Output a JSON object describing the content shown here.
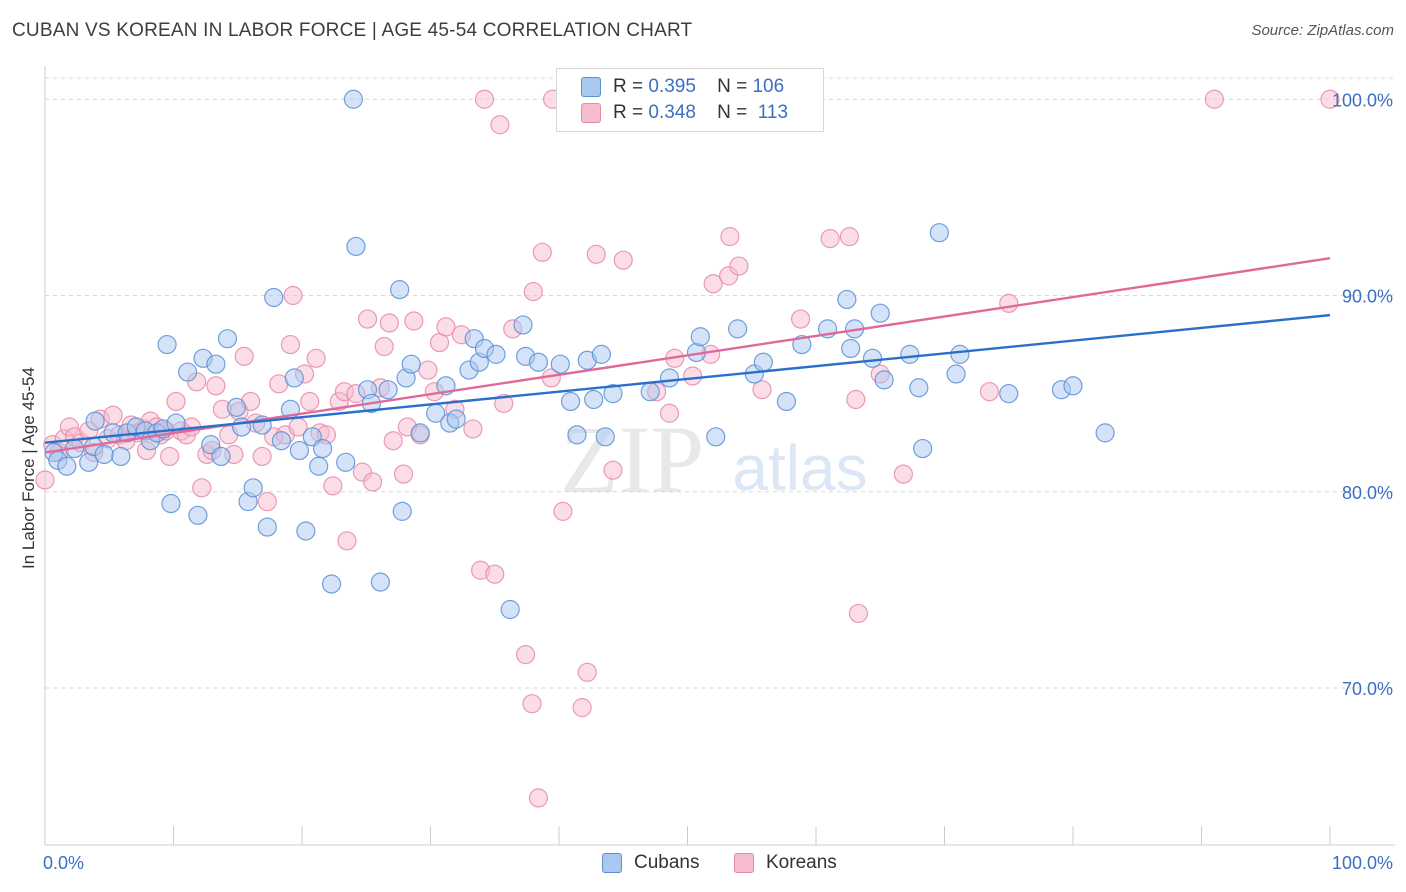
{
  "title": "CUBAN VS KOREAN IN LABOR FORCE | AGE 45-54 CORRELATION CHART",
  "source": "Source: ZipAtlas.com",
  "watermark": {
    "zip": "ZIP",
    "atlas": "atlas"
  },
  "legend": {
    "r_label": "R =",
    "n_label": "N =",
    "rows": [
      {
        "r": "0.395",
        "n": "106"
      },
      {
        "r": "0.348",
        "n": "113"
      }
    ]
  },
  "colors": {
    "cubans_fill": "#a9c8ef",
    "cubans_stroke": "#5b8fd6",
    "cubans_line": "#2a6fcc",
    "koreans_fill": "#f6bcd0",
    "koreans_stroke": "#e68aaa",
    "koreans_line": "#e0699a",
    "axis_text": "#3b6fc4",
    "grid": "#d8d8d8"
  },
  "chart_data": {
    "type": "scatter",
    "title": "CUBAN VS KOREAN IN LABOR FORCE | AGE 45-54 CORRELATION CHART",
    "xlabel": "",
    "ylabel": "In Labor Force | Age 45-54",
    "xlim": [
      0,
      100
    ],
    "ylim": [
      62,
      102
    ],
    "x_tick_labels": [
      "0.0%",
      "100.0%"
    ],
    "y_ticks": [
      70,
      80,
      90,
      100
    ],
    "y_tick_labels": [
      "70.0%",
      "80.0%",
      "90.0%",
      "100.0%"
    ],
    "grid": "horizontal dashed",
    "legend_position": "bottom-center",
    "series": [
      {
        "name": "Cubans",
        "r": 0.395,
        "n": 106,
        "trend": {
          "x": [
            0,
            100
          ],
          "y": [
            82.5,
            89.0
          ]
        },
        "points": [
          [
            0.7,
            82.0
          ],
          [
            1.0,
            81.6
          ],
          [
            1.7,
            81.3
          ],
          [
            2.3,
            82.2
          ],
          [
            3.4,
            81.5
          ],
          [
            3.8,
            82.3
          ],
          [
            3.9,
            83.6
          ],
          [
            4.6,
            81.9
          ],
          [
            5.3,
            83.0
          ],
          [
            5.9,
            81.8
          ],
          [
            6.4,
            83.0
          ],
          [
            7.1,
            83.3
          ],
          [
            7.8,
            83.1
          ],
          [
            8.2,
            82.6
          ],
          [
            8.7,
            83.0
          ],
          [
            9.2,
            83.2
          ],
          [
            9.5,
            87.5
          ],
          [
            9.8,
            79.4
          ],
          [
            10.2,
            83.5
          ],
          [
            11.1,
            86.1
          ],
          [
            11.9,
            78.8
          ],
          [
            12.3,
            86.8
          ],
          [
            12.9,
            82.4
          ],
          [
            13.3,
            86.5
          ],
          [
            13.7,
            81.8
          ],
          [
            14.2,
            87.8
          ],
          [
            14.9,
            84.3
          ],
          [
            15.3,
            83.3
          ],
          [
            15.8,
            79.5
          ],
          [
            16.2,
            80.2
          ],
          [
            16.9,
            83.4
          ],
          [
            17.3,
            78.2
          ],
          [
            17.8,
            89.9
          ],
          [
            18.4,
            82.6
          ],
          [
            19.1,
            84.2
          ],
          [
            19.4,
            85.8
          ],
          [
            19.8,
            82.1
          ],
          [
            20.3,
            78.0
          ],
          [
            20.8,
            82.8
          ],
          [
            21.3,
            81.3
          ],
          [
            21.6,
            82.2
          ],
          [
            22.3,
            75.3
          ],
          [
            23.4,
            81.5
          ],
          [
            24.0,
            100.0
          ],
          [
            24.2,
            92.5
          ],
          [
            25.1,
            85.2
          ],
          [
            25.4,
            84.5
          ],
          [
            26.1,
            75.4
          ],
          [
            26.7,
            85.2
          ],
          [
            27.6,
            90.3
          ],
          [
            27.8,
            79.0
          ],
          [
            28.1,
            85.8
          ],
          [
            28.5,
            86.5
          ],
          [
            29.2,
            83.0
          ],
          [
            30.4,
            84.0
          ],
          [
            31.2,
            85.4
          ],
          [
            31.5,
            83.5
          ],
          [
            32.0,
            83.7
          ],
          [
            33.0,
            86.2
          ],
          [
            33.4,
            87.8
          ],
          [
            33.8,
            86.6
          ],
          [
            34.2,
            87.3
          ],
          [
            35.1,
            87.0
          ],
          [
            36.2,
            74.0
          ],
          [
            37.2,
            88.5
          ],
          [
            37.4,
            86.9
          ],
          [
            38.4,
            86.6
          ],
          [
            40.1,
            86.5
          ],
          [
            40.9,
            84.6
          ],
          [
            41.4,
            82.9
          ],
          [
            42.2,
            86.7
          ],
          [
            42.7,
            84.7
          ],
          [
            43.3,
            87.0
          ],
          [
            43.6,
            82.8
          ],
          [
            44.2,
            85.0
          ],
          [
            47.1,
            85.1
          ],
          [
            48.6,
            85.8
          ],
          [
            50.7,
            87.1
          ],
          [
            51.0,
            87.9
          ],
          [
            52.2,
            82.8
          ],
          [
            53.9,
            88.3
          ],
          [
            55.2,
            86.0
          ],
          [
            55.9,
            86.6
          ],
          [
            57.7,
            84.6
          ],
          [
            58.9,
            87.5
          ],
          [
            60.9,
            88.3
          ],
          [
            62.4,
            89.8
          ],
          [
            62.7,
            87.3
          ],
          [
            63.0,
            88.3
          ],
          [
            64.4,
            86.8
          ],
          [
            65.0,
            89.1
          ],
          [
            65.3,
            85.7
          ],
          [
            67.3,
            87.0
          ],
          [
            68.0,
            85.3
          ],
          [
            68.3,
            82.2
          ],
          [
            69.6,
            93.2
          ],
          [
            70.9,
            86.0
          ],
          [
            71.2,
            87.0
          ],
          [
            75.0,
            85.0
          ],
          [
            79.1,
            85.2
          ],
          [
            80.0,
            85.4
          ],
          [
            82.5,
            83.0
          ]
        ]
      },
      {
        "name": "Koreans",
        "r": 0.348,
        "n": 113,
        "trend": {
          "x": [
            0,
            100
          ],
          "y": [
            82.0,
            91.9
          ]
        },
        "points": [
          [
            0.0,
            80.6
          ],
          [
            0.6,
            82.4
          ],
          [
            1.1,
            82.0
          ],
          [
            1.5,
            82.7
          ],
          [
            1.9,
            83.3
          ],
          [
            2.3,
            82.8
          ],
          [
            2.8,
            82.5
          ],
          [
            3.4,
            83.1
          ],
          [
            3.8,
            82.0
          ],
          [
            4.3,
            83.7
          ],
          [
            4.9,
            82.7
          ],
          [
            5.3,
            83.9
          ],
          [
            5.8,
            82.9
          ],
          [
            6.3,
            82.6
          ],
          [
            6.7,
            83.4
          ],
          [
            7.2,
            83.0
          ],
          [
            7.7,
            83.2
          ],
          [
            7.9,
            82.1
          ],
          [
            8.2,
            83.6
          ],
          [
            8.7,
            83.3
          ],
          [
            9.0,
            82.9
          ],
          [
            9.4,
            83.1
          ],
          [
            9.7,
            81.8
          ],
          [
            10.2,
            84.6
          ],
          [
            10.6,
            83.1
          ],
          [
            11.0,
            82.9
          ],
          [
            11.4,
            83.3
          ],
          [
            11.8,
            85.6
          ],
          [
            12.2,
            80.2
          ],
          [
            12.6,
            81.9
          ],
          [
            13.0,
            82.1
          ],
          [
            13.3,
            85.4
          ],
          [
            13.8,
            84.2
          ],
          [
            14.3,
            82.9
          ],
          [
            14.7,
            81.9
          ],
          [
            15.1,
            84.1
          ],
          [
            15.5,
            86.9
          ],
          [
            16.0,
            84.6
          ],
          [
            16.4,
            83.5
          ],
          [
            16.9,
            81.8
          ],
          [
            17.3,
            79.5
          ],
          [
            17.8,
            82.8
          ],
          [
            18.2,
            85.5
          ],
          [
            18.7,
            82.9
          ],
          [
            19.1,
            87.5
          ],
          [
            19.3,
            90.0
          ],
          [
            19.7,
            83.3
          ],
          [
            20.2,
            86.0
          ],
          [
            20.6,
            84.6
          ],
          [
            21.1,
            86.8
          ],
          [
            21.4,
            83.0
          ],
          [
            21.9,
            82.9
          ],
          [
            22.4,
            80.3
          ],
          [
            22.9,
            84.6
          ],
          [
            23.3,
            85.1
          ],
          [
            23.5,
            77.5
          ],
          [
            24.2,
            85.0
          ],
          [
            24.7,
            81.0
          ],
          [
            25.1,
            88.8
          ],
          [
            25.5,
            80.5
          ],
          [
            26.1,
            85.3
          ],
          [
            26.4,
            87.4
          ],
          [
            26.8,
            88.6
          ],
          [
            27.1,
            82.6
          ],
          [
            27.9,
            80.9
          ],
          [
            28.2,
            83.3
          ],
          [
            28.7,
            88.7
          ],
          [
            29.2,
            82.9
          ],
          [
            29.8,
            86.2
          ],
          [
            30.3,
            85.1
          ],
          [
            30.7,
            87.6
          ],
          [
            31.2,
            88.4
          ],
          [
            31.9,
            84.2
          ],
          [
            32.4,
            88.0
          ],
          [
            33.3,
            83.2
          ],
          [
            33.9,
            76.0
          ],
          [
            34.2,
            100.0
          ],
          [
            35.0,
            75.8
          ],
          [
            35.4,
            98.7
          ],
          [
            35.7,
            84.5
          ],
          [
            36.4,
            88.3
          ],
          [
            37.4,
            71.7
          ],
          [
            37.9,
            69.2
          ],
          [
            38.0,
            90.2
          ],
          [
            38.4,
            64.4
          ],
          [
            38.7,
            92.2
          ],
          [
            39.4,
            85.8
          ],
          [
            39.5,
            100.0
          ],
          [
            40.3,
            79.0
          ],
          [
            41.8,
            69.0
          ],
          [
            42.2,
            70.8
          ],
          [
            42.9,
            92.1
          ],
          [
            44.2,
            81.1
          ],
          [
            45.0,
            91.8
          ],
          [
            47.6,
            85.1
          ],
          [
            48.6,
            84.0
          ],
          [
            49.0,
            86.8
          ],
          [
            50.4,
            85.9
          ],
          [
            51.8,
            87.0
          ],
          [
            52.0,
            90.6
          ],
          [
            53.2,
            91.0
          ],
          [
            53.3,
            93.0
          ],
          [
            54.0,
            91.5
          ],
          [
            55.8,
            85.2
          ],
          [
            58.8,
            88.8
          ],
          [
            61.1,
            92.9
          ],
          [
            62.6,
            93.0
          ],
          [
            63.1,
            84.7
          ],
          [
            63.3,
            73.8
          ],
          [
            65.0,
            86.0
          ],
          [
            66.8,
            80.9
          ],
          [
            73.5,
            85.1
          ],
          [
            75.0,
            89.6
          ],
          [
            91.0,
            100.0
          ],
          [
            100.0,
            100.0
          ]
        ]
      }
    ]
  }
}
